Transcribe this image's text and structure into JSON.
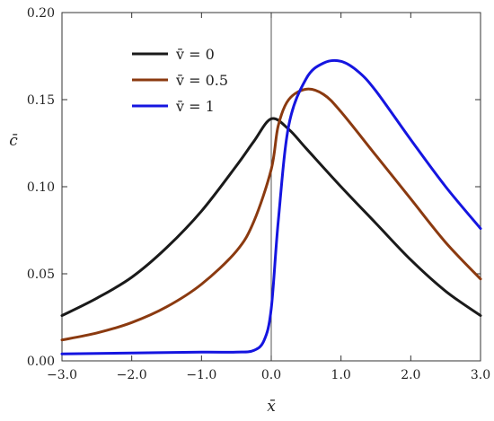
{
  "chart_data": {
    "type": "line",
    "xlabel": "x̄",
    "ylabel": "c̄",
    "xlim": [
      -3.0,
      3.0
    ],
    "ylim": [
      0.0,
      0.2
    ],
    "xticks": [
      -3.0,
      -2.0,
      -1.0,
      0.0,
      1.0,
      2.0,
      3.0
    ],
    "xtick_labels": [
      "−3.0",
      "−2.0",
      "−1.0",
      "0.0",
      "1.0",
      "2.0",
      "3.0"
    ],
    "yticks": [
      0.0,
      0.05,
      0.1,
      0.15,
      0.2
    ],
    "ytick_labels": [
      "0.00",
      "0.05",
      "0.10",
      "0.15",
      "0.20"
    ],
    "grid": false,
    "vertical_reference_line_x": 0.0,
    "legend_position": "top-left",
    "series": [
      {
        "name": "v̄ = 0",
        "color": "#1a1a1a",
        "x": [
          -3.0,
          -2.5,
          -2.0,
          -1.5,
          -1.0,
          -0.5,
          -0.25,
          0.0,
          0.25,
          0.5,
          1.0,
          1.5,
          2.0,
          2.5,
          3.0
        ],
        "y": [
          0.026,
          0.036,
          0.048,
          0.065,
          0.086,
          0.112,
          0.126,
          0.139,
          0.133,
          0.122,
          0.1,
          0.079,
          0.058,
          0.04,
          0.026
        ]
      },
      {
        "name": "v̄ = 0.5",
        "color": "#8b3a10",
        "x": [
          -3.0,
          -2.5,
          -2.0,
          -1.5,
          -1.0,
          -0.5,
          -0.25,
          0.0,
          0.1,
          0.25,
          0.5,
          0.75,
          1.0,
          1.5,
          2.0,
          2.5,
          3.0
        ],
        "y": [
          0.012,
          0.016,
          0.022,
          0.031,
          0.044,
          0.063,
          0.08,
          0.11,
          0.135,
          0.15,
          0.156,
          0.153,
          0.143,
          0.118,
          0.093,
          0.068,
          0.047
        ]
      },
      {
        "name": "v̄ = 1",
        "color": "#1515e0",
        "x": [
          -3.0,
          -2.0,
          -1.0,
          -0.5,
          -0.25,
          -0.1,
          0.0,
          0.1,
          0.25,
          0.5,
          0.75,
          1.0,
          1.25,
          1.5,
          2.0,
          2.5,
          3.0
        ],
        "y": [
          0.004,
          0.0045,
          0.005,
          0.005,
          0.006,
          0.012,
          0.03,
          0.08,
          0.135,
          0.162,
          0.171,
          0.172,
          0.166,
          0.155,
          0.127,
          0.1,
          0.076
        ]
      }
    ]
  }
}
